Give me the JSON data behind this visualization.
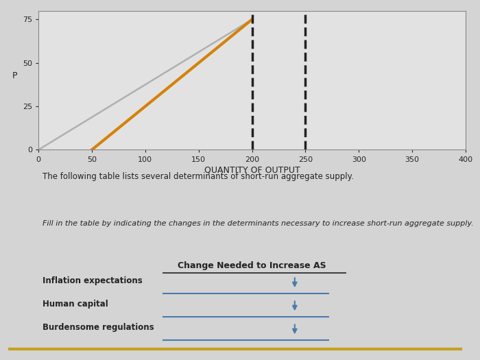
{
  "bg_color": "#d4d4d4",
  "chart_bg": "#e2e2e2",
  "chart_area": {
    "xlim": [
      0,
      400
    ],
    "ylim": [
      0,
      80
    ],
    "xticks": [
      0,
      50,
      100,
      150,
      200,
      250,
      300,
      350,
      400
    ],
    "yticks": [
      0,
      25,
      50,
      75
    ],
    "xlabel": "QUANTITY OF OUTPUT",
    "ylabel": "P"
  },
  "orange_line": {
    "x": [
      50,
      200
    ],
    "y": [
      0,
      75
    ],
    "color": "#d4820a",
    "linewidth": 3
  },
  "gray_line": {
    "x": [
      0,
      200
    ],
    "y": [
      0,
      75
    ],
    "color": "#b0b0b0",
    "linewidth": 1.8
  },
  "dashed_line1_x": 200,
  "dashed_line2_x": 250,
  "dashed_color": "#222222",
  "dashed_lw": 2.5,
  "separator_color": "#c8a020",
  "separator_linewidth": 3,
  "text1": "The following table lists several determinants of short-run aggregate supply.",
  "text2": "Fill in the table by indicating the changes in the determinants necessary to increase short-run aggregate supply.",
  "table_header": "Change Needed to Increase AS",
  "table_rows": [
    "Inflation expectations",
    "Human capital",
    "Burdensome regulations"
  ],
  "dropdown_color": "#4a7aab",
  "font_color": "#222222"
}
